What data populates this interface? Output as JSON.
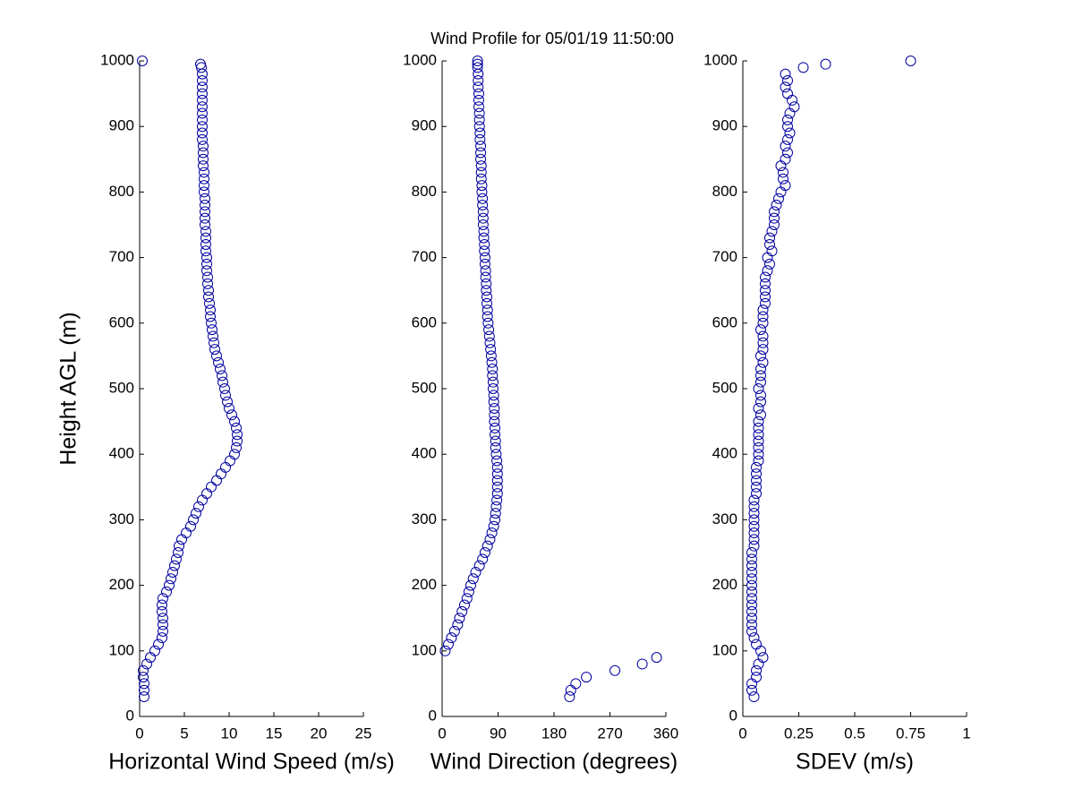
{
  "title": "Wind Profile for  05/01/19 11:50:00",
  "chart_data": [
    {
      "type": "scatter",
      "y_label": "Height AGL (m)",
      "x_label": "Horizontal Wind Speed (m/s)",
      "color": "#0000a0",
      "xlim": [
        0,
        25
      ],
      "xticks": [
        0,
        5,
        10,
        15,
        20,
        25
      ],
      "ylim": [
        0,
        1000
      ],
      "yticks": [
        0,
        100,
        200,
        300,
        400,
        500,
        600,
        700,
        800,
        900,
        1000
      ],
      "x": [
        0.5,
        0.5,
        0.5,
        0.4,
        0.4,
        0.8,
        1.2,
        1.7,
        2.1,
        2.5,
        2.6,
        2.6,
        2.6,
        2.5,
        2.5,
        2.6,
        3.0,
        3.3,
        3.5,
        3.7,
        3.9,
        4.1,
        4.3,
        4.4,
        4.7,
        5.2,
        5.7,
        6.0,
        6.3,
        6.6,
        7.0,
        7.5,
        8.0,
        8.6,
        9.1,
        9.6,
        10.1,
        10.6,
        10.8,
        10.9,
        10.9,
        10.8,
        10.6,
        10.3,
        10.0,
        9.8,
        9.6,
        9.5,
        9.3,
        9.2,
        9.0,
        8.8,
        8.6,
        8.4,
        8.3,
        8.2,
        8.1,
        8.0,
        7.9,
        7.9,
        7.8,
        7.7,
        7.7,
        7.6,
        7.6,
        7.5,
        7.5,
        7.5,
        7.4,
        7.4,
        7.4,
        7.4,
        7.3,
        7.3,
        7.3,
        7.3,
        7.3,
        7.2,
        7.2,
        7.2,
        7.2,
        7.1,
        7.1,
        7.1,
        7.1,
        7.0,
        7.0,
        7.0,
        7.0,
        7.0,
        7.0,
        7.0,
        7.0,
        7.0,
        7.0,
        7.0,
        6.9,
        6.8,
        0.3
      ],
      "y": [
        30,
        40,
        50,
        60,
        70,
        80,
        90,
        100,
        110,
        120,
        130,
        140,
        150,
        160,
        170,
        180,
        190,
        200,
        210,
        220,
        230,
        240,
        250,
        260,
        270,
        280,
        290,
        300,
        310,
        320,
        330,
        340,
        350,
        360,
        370,
        380,
        390,
        400,
        410,
        420,
        430,
        440,
        450,
        460,
        470,
        480,
        490,
        500,
        510,
        520,
        530,
        540,
        550,
        560,
        570,
        580,
        590,
        600,
        610,
        620,
        630,
        640,
        650,
        660,
        670,
        680,
        690,
        700,
        710,
        720,
        730,
        740,
        750,
        760,
        770,
        780,
        790,
        800,
        810,
        820,
        830,
        840,
        850,
        860,
        870,
        880,
        890,
        900,
        910,
        920,
        930,
        940,
        950,
        960,
        970,
        980,
        990,
        995,
        1000
      ]
    },
    {
      "type": "scatter",
      "x_label": "Wind Direction (degrees)",
      "color": "#0000a0",
      "xlim": [
        0,
        360
      ],
      "xticks": [
        0,
        90,
        180,
        270,
        360
      ],
      "ylim": [
        0,
        1000
      ],
      "yticks": [
        0,
        100,
        200,
        300,
        400,
        500,
        600,
        700,
        800,
        900,
        1000
      ],
      "x": [
        205,
        207,
        215,
        232,
        278,
        322,
        345,
        5,
        10,
        15,
        20,
        25,
        28,
        32,
        36,
        40,
        43,
        46,
        50,
        54,
        60,
        65,
        69,
        73,
        77,
        80,
        83,
        85,
        86,
        87,
        88,
        89,
        89,
        89,
        89,
        89,
        88,
        87,
        86,
        86,
        85,
        85,
        84,
        84,
        84,
        83,
        83,
        82,
        82,
        81,
        81,
        80,
        79,
        78,
        77,
        76,
        75,
        74,
        73,
        73,
        72,
        72,
        71,
        71,
        70,
        70,
        69,
        69,
        68,
        68,
        67,
        67,
        66,
        66,
        66,
        65,
        65,
        64,
        64,
        63,
        63,
        63,
        62,
        62,
        62,
        61,
        61,
        60,
        60,
        60,
        59,
        59,
        59,
        58,
        58,
        58,
        57,
        57,
        57
      ],
      "y": [
        30,
        40,
        50,
        60,
        70,
        80,
        90,
        100,
        110,
        120,
        130,
        140,
        150,
        160,
        170,
        180,
        190,
        200,
        210,
        220,
        230,
        240,
        250,
        260,
        270,
        280,
        290,
        300,
        310,
        320,
        330,
        340,
        350,
        360,
        370,
        380,
        390,
        400,
        410,
        420,
        430,
        440,
        450,
        460,
        470,
        480,
        490,
        500,
        510,
        520,
        530,
        540,
        550,
        560,
        570,
        580,
        590,
        600,
        610,
        620,
        630,
        640,
        650,
        660,
        670,
        680,
        690,
        700,
        710,
        720,
        730,
        740,
        750,
        760,
        770,
        780,
        790,
        800,
        810,
        820,
        830,
        840,
        850,
        860,
        870,
        880,
        890,
        900,
        910,
        920,
        930,
        940,
        950,
        960,
        970,
        980,
        990,
        995,
        1000
      ]
    },
    {
      "type": "scatter",
      "x_label": "SDEV  (m/s)",
      "color": "#0000a0",
      "xlim": [
        0,
        1
      ],
      "xticks": [
        0,
        0.25,
        0.5,
        0.75,
        1
      ],
      "ylim": [
        0,
        1000
      ],
      "yticks": [
        0,
        100,
        200,
        300,
        400,
        500,
        600,
        700,
        800,
        900,
        1000
      ],
      "x": [
        0.05,
        0.04,
        0.04,
        0.06,
        0.06,
        0.07,
        0.09,
        0.08,
        0.06,
        0.05,
        0.04,
        0.04,
        0.04,
        0.04,
        0.04,
        0.04,
        0.04,
        0.04,
        0.04,
        0.04,
        0.04,
        0.04,
        0.04,
        0.05,
        0.05,
        0.05,
        0.05,
        0.05,
        0.05,
        0.05,
        0.05,
        0.06,
        0.06,
        0.06,
        0.06,
        0.06,
        0.07,
        0.07,
        0.07,
        0.07,
        0.07,
        0.07,
        0.07,
        0.08,
        0.07,
        0.08,
        0.08,
        0.07,
        0.08,
        0.08,
        0.08,
        0.09,
        0.08,
        0.09,
        0.09,
        0.09,
        0.08,
        0.09,
        0.09,
        0.09,
        0.1,
        0.1,
        0.1,
        0.1,
        0.1,
        0.11,
        0.12,
        0.11,
        0.13,
        0.12,
        0.12,
        0.13,
        0.14,
        0.14,
        0.14,
        0.15,
        0.16,
        0.17,
        0.19,
        0.18,
        0.18,
        0.17,
        0.19,
        0.2,
        0.19,
        0.2,
        0.21,
        0.2,
        0.2,
        0.21,
        0.23,
        0.22,
        0.2,
        0.19,
        0.2,
        0.19,
        0.27,
        0.37,
        0.75
      ],
      "y": [
        30,
        40,
        50,
        60,
        70,
        80,
        90,
        100,
        110,
        120,
        130,
        140,
        150,
        160,
        170,
        180,
        190,
        200,
        210,
        220,
        230,
        240,
        250,
        260,
        270,
        280,
        290,
        300,
        310,
        320,
        330,
        340,
        350,
        360,
        370,
        380,
        390,
        400,
        410,
        420,
        430,
        440,
        450,
        460,
        470,
        480,
        490,
        500,
        510,
        520,
        530,
        540,
        550,
        560,
        570,
        580,
        590,
        600,
        610,
        620,
        630,
        640,
        650,
        660,
        670,
        680,
        690,
        700,
        710,
        720,
        730,
        740,
        750,
        760,
        770,
        780,
        790,
        800,
        810,
        820,
        830,
        840,
        850,
        860,
        870,
        880,
        890,
        900,
        910,
        920,
        930,
        940,
        950,
        960,
        970,
        980,
        990,
        995,
        1000
      ]
    }
  ]
}
